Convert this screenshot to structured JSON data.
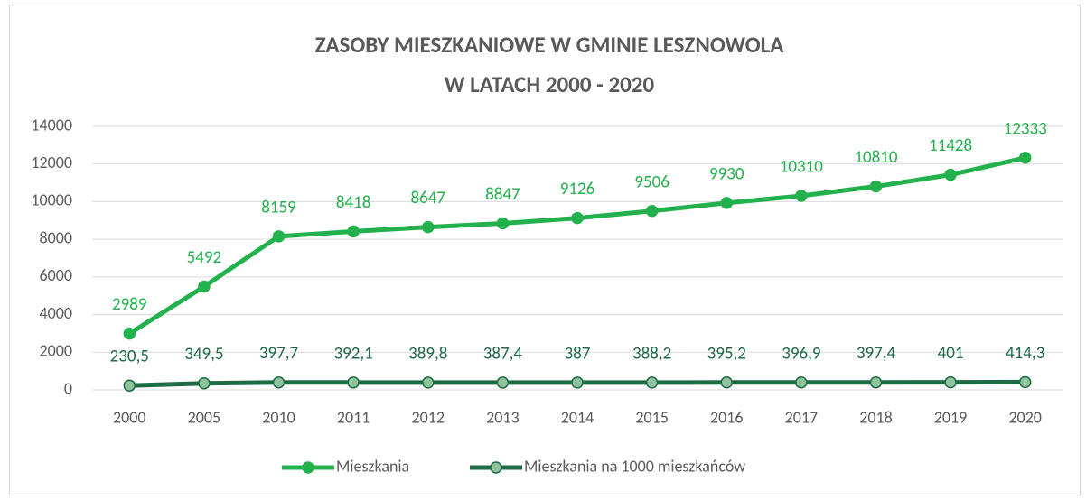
{
  "chart_data": {
    "type": "line",
    "title": [
      "ZASOBY MIESZKANIOWE W GMINIE LESZNOWOLA",
      "W LATACH 2000 - 2020"
    ],
    "categories": [
      "2000",
      "2005",
      "2010",
      "2011",
      "2012",
      "2013",
      "2014",
      "2015",
      "2016",
      "2017",
      "2018",
      "2019",
      "2020"
    ],
    "series": [
      {
        "name": "Mieszkania",
        "color": "#22b14c",
        "marker_color": "#22b14c",
        "label_color": "#22b14c",
        "values": [
          2989,
          5492,
          8159,
          8418,
          8647,
          8847,
          9126,
          9506,
          9930,
          10310,
          10810,
          11428,
          12333
        ]
      },
      {
        "name": "Mieszkania na 1000 mieszkańców",
        "color": "#1e6b46",
        "marker_color": "#8fc39b",
        "label_color": "#1e6b46",
        "values": [
          230.5,
          349.5,
          397.7,
          392.1,
          389.8,
          387.4,
          387,
          388.2,
          395.2,
          396.9,
          397.4,
          401,
          414.3
        ],
        "value_labels": [
          "230,5",
          "349,5",
          "397,7",
          "392,1",
          "389,8",
          "387,4",
          "387",
          "388,2",
          "395,2",
          "396,9",
          "397,4",
          "401",
          "414,3"
        ]
      }
    ],
    "ylim": [
      0,
      14000
    ],
    "yticks": [
      0,
      2000,
      4000,
      6000,
      8000,
      10000,
      12000,
      14000
    ],
    "grid": true,
    "legend": "bottom"
  }
}
